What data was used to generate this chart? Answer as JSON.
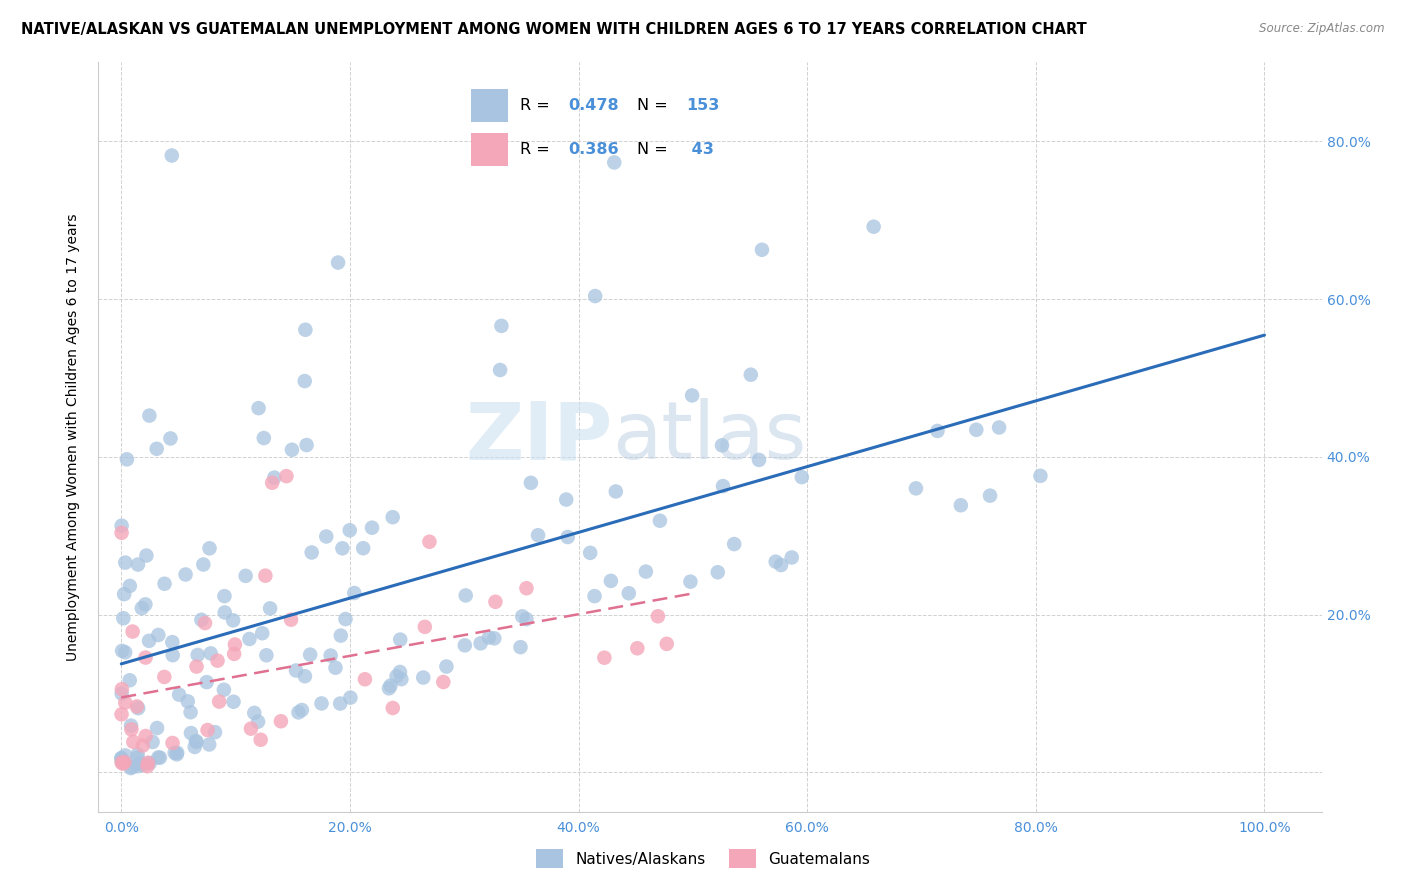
{
  "title": "NATIVE/ALASKAN VS GUATEMALAN UNEMPLOYMENT AMONG WOMEN WITH CHILDREN AGES 6 TO 17 YEARS CORRELATION CHART",
  "source": "Source: ZipAtlas.com",
  "ylabel": "Unemployment Among Women with Children Ages 6 to 17 years",
  "xlim": [
    -0.02,
    1.05
  ],
  "ylim": [
    -0.05,
    0.9
  ],
  "xticks": [
    0.0,
    0.2,
    0.4,
    0.6,
    0.8,
    1.0
  ],
  "yticks": [
    0.0,
    0.2,
    0.4,
    0.6,
    0.8
  ],
  "xtick_labels": [
    "0.0%",
    "20.0%",
    "40.0%",
    "60.0%",
    "80.0%",
    "100.0%"
  ],
  "ytick_labels_right": [
    "",
    "20.0%",
    "40.0%",
    "60.0%",
    "80.0%"
  ],
  "native_color": "#a8c4e0",
  "guatemalan_color": "#f4a7b9",
  "native_line_color": "#2b6cb8",
  "guatemalan_line_color": "#e07090",
  "tick_color": "#4a90d9",
  "R_native": 0.478,
  "N_native": 153,
  "R_guatemalan": 0.386,
  "N_guatemalan": 43,
  "background_color": "#ffffff",
  "grid_color": "#cccccc",
  "title_fontsize": 10.5,
  "label_fontsize": 10,
  "tick_fontsize": 10,
  "legend_fontsize": 12
}
